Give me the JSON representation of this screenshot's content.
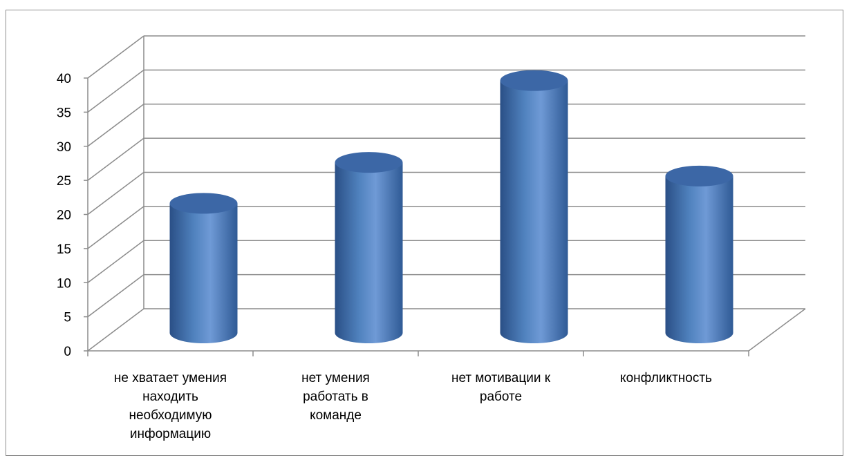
{
  "chart_data": {
    "type": "bar",
    "style": "3d-cylinder",
    "categories": [
      [
        "не хватает умения",
        "находить",
        "необходимую",
        "информацию"
      ],
      [
        "нет умения",
        "работать в",
        "команде"
      ],
      [
        "нет мотивации к",
        "работе"
      ],
      [
        "конфликтность"
      ]
    ],
    "values": [
      19,
      25,
      37,
      23
    ],
    "ylim": [
      0,
      40
    ],
    "yticks": [
      0,
      5,
      10,
      15,
      20,
      25,
      30,
      35,
      40
    ],
    "grid": true,
    "legend": "none",
    "colors": {
      "bar_dark": "#2a4f86",
      "bar_mid": "#4f81bd",
      "bar_light": "#6f9ad6",
      "bar_top": "#3c67a6",
      "grid": "#8c8c8c",
      "axis": "#8c8c8c"
    }
  }
}
